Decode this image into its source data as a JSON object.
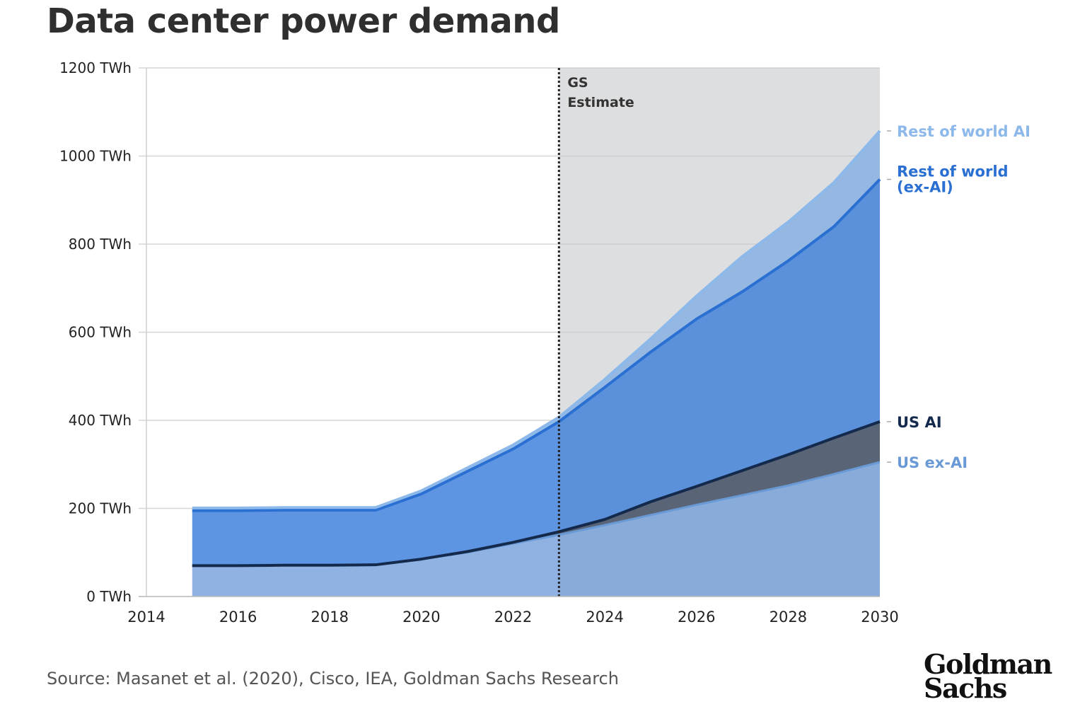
{
  "title": "Data center power demand",
  "source": "Source: Masanet et al. (2020), Cisco, IEA, Goldman Sachs Research",
  "logo": {
    "line1": "Goldman",
    "line2": "Sachs"
  },
  "colors": {
    "us_ex_ai": "#8fb2e2",
    "us_ai": "#5c6677",
    "rest_ex_ai": "#5e95e3",
    "rest_ai": "#9cc0ea",
    "us_ai_line": "#142a4c",
    "rest_ex_ai_line": "#2a6fd2",
    "rest_ai_line": "#8cb8ea",
    "us_ex_ai_line": "#6a9ad6",
    "estimate_shade": "#e8e8e8",
    "grid": "#d6d6d6"
  },
  "chart_data": {
    "type": "area",
    "stacked": true,
    "xlim": [
      2014,
      2030
    ],
    "ylim": [
      0,
      1200
    ],
    "x_ticks": [
      "2014",
      "2016",
      "2018",
      "2020",
      "2022",
      "2024",
      "2026",
      "2028",
      "2030"
    ],
    "y_ticks": [
      "0 TWh",
      "200 TWh",
      "400 TWh",
      "600 TWh",
      "800 TWh",
      "1000 TWh",
      "1200 TWh"
    ],
    "estimate_start": 2023,
    "estimate_label": [
      "GS",
      "Estimate"
    ],
    "x": [
      2015,
      2016,
      2017,
      2018,
      2019,
      2020,
      2021,
      2022,
      2023,
      2024,
      2025,
      2026,
      2027,
      2028,
      2029,
      2030
    ],
    "series": [
      {
        "name": "US ex-AI",
        "values": [
          70,
          70,
          71,
          71,
          72,
          85,
          100,
          120,
          140,
          162,
          185,
          208,
          230,
          252,
          278,
          305
        ]
      },
      {
        "name": "US AI",
        "values": [
          0,
          0,
          0,
          0,
          0,
          0,
          2,
          3,
          7,
          13,
          30,
          42,
          56,
          70,
          82,
          92
        ]
      },
      {
        "name": "Rest of world (ex-AI)",
        "values": [
          125,
          125,
          125,
          125,
          124,
          148,
          182,
          212,
          250,
          300,
          340,
          380,
          406,
          440,
          480,
          550
        ]
      },
      {
        "name": "Rest of world AI",
        "values": [
          6,
          6,
          6,
          6,
          6,
          7,
          8,
          9,
          10,
          18,
          30,
          52,
          80,
          88,
          100,
          110
        ]
      }
    ]
  }
}
